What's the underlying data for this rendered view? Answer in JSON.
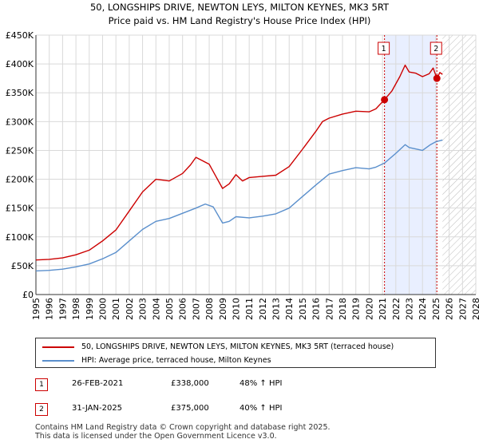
{
  "chart_data": {
    "type": "line",
    "title_line1": "50, LONGSHIPS DRIVE, NEWTON LEYS, MILTON KEYNES, MK3 5RT",
    "title_line2": "Price paid vs. HM Land Registry's House Price Index (HPI)",
    "xlim": [
      1995,
      2028
    ],
    "ylim": [
      0,
      450000
    ],
    "y_ticks": [
      {
        "v": 0,
        "label": "£0"
      },
      {
        "v": 50000,
        "label": "£50K"
      },
      {
        "v": 100000,
        "label": "£100K"
      },
      {
        "v": 150000,
        "label": "£150K"
      },
      {
        "v": 200000,
        "label": "£200K"
      },
      {
        "v": 250000,
        "label": "£250K"
      },
      {
        "v": 300000,
        "label": "£300K"
      },
      {
        "v": 350000,
        "label": "£350K"
      },
      {
        "v": 400000,
        "label": "£400K"
      },
      {
        "v": 450000,
        "label": "£450K"
      }
    ],
    "x_ticks": [
      "1995",
      "1996",
      "1997",
      "1998",
      "1999",
      "2000",
      "2001",
      "2002",
      "2003",
      "2004",
      "2005",
      "2006",
      "2007",
      "2008",
      "2009",
      "2010",
      "2011",
      "2012",
      "2013",
      "2014",
      "2015",
      "2016",
      "2017",
      "2018",
      "2019",
      "2020",
      "2021",
      "2022",
      "2023",
      "2024",
      "2025",
      "2026",
      "2027",
      "2028"
    ],
    "highlight_span": [
      2021.15,
      2025.08
    ],
    "future_hatch_start": 2025.5,
    "series": [
      {
        "name": "50, LONGSHIPS DRIVE, NEWTON LEYS, MILTON KEYNES, MK3 5RT (terraced house)",
        "color": "#cc0000",
        "points": [
          [
            1995,
            60000
          ],
          [
            1996,
            61000
          ],
          [
            1997,
            63500
          ],
          [
            1998,
            69000
          ],
          [
            1999,
            77000
          ],
          [
            2000,
            93000
          ],
          [
            2001,
            112000
          ],
          [
            2002,
            145000
          ],
          [
            2003,
            178000
          ],
          [
            2004,
            200000
          ],
          [
            2005,
            197000
          ],
          [
            2006,
            210000
          ],
          [
            2006.6,
            225000
          ],
          [
            2007,
            238000
          ],
          [
            2007.5,
            232000
          ],
          [
            2008,
            226000
          ],
          [
            2008.5,
            205000
          ],
          [
            2009,
            184000
          ],
          [
            2009.5,
            192000
          ],
          [
            2010,
            208000
          ],
          [
            2010.5,
            197000
          ],
          [
            2011,
            203000
          ],
          [
            2012,
            205000
          ],
          [
            2013,
            207000
          ],
          [
            2014,
            222000
          ],
          [
            2015,
            252000
          ],
          [
            2016,
            283000
          ],
          [
            2016.5,
            300000
          ],
          [
            2017,
            306000
          ],
          [
            2018,
            313000
          ],
          [
            2019,
            318000
          ],
          [
            2020,
            317000
          ],
          [
            2020.5,
            322000
          ],
          [
            2021.15,
            338000
          ],
          [
            2021.7,
            353000
          ],
          [
            2022.3,
            378000
          ],
          [
            2022.7,
            398000
          ],
          [
            2023,
            386000
          ],
          [
            2023.5,
            384000
          ],
          [
            2024,
            378000
          ],
          [
            2024.5,
            383000
          ],
          [
            2024.8,
            393000
          ],
          [
            2025.08,
            375000
          ],
          [
            2025.3,
            385000
          ],
          [
            2025.5,
            382000
          ]
        ]
      },
      {
        "name": "HPI: Average price, terraced house, Milton Keynes",
        "color": "#5a8fcc",
        "points": [
          [
            1995,
            41000
          ],
          [
            1996,
            42000
          ],
          [
            1997,
            44000
          ],
          [
            1998,
            48000
          ],
          [
            1999,
            53000
          ],
          [
            2000,
            62000
          ],
          [
            2001,
            73000
          ],
          [
            2002,
            93000
          ],
          [
            2003,
            113000
          ],
          [
            2004,
            127000
          ],
          [
            2005,
            132000
          ],
          [
            2006,
            141000
          ],
          [
            2007,
            150000
          ],
          [
            2007.7,
            157000
          ],
          [
            2008.3,
            152000
          ],
          [
            2009,
            124000
          ],
          [
            2009.5,
            127000
          ],
          [
            2010,
            135000
          ],
          [
            2011,
            133000
          ],
          [
            2012,
            136000
          ],
          [
            2013,
            140000
          ],
          [
            2014,
            150000
          ],
          [
            2015,
            170000
          ],
          [
            2016,
            190000
          ],
          [
            2017,
            209000
          ],
          [
            2018,
            215000
          ],
          [
            2019,
            220000
          ],
          [
            2020,
            218000
          ],
          [
            2020.5,
            221000
          ],
          [
            2021.15,
            228000
          ],
          [
            2022,
            245000
          ],
          [
            2022.7,
            260000
          ],
          [
            2023,
            255000
          ],
          [
            2024,
            250000
          ],
          [
            2024.6,
            260000
          ],
          [
            2025,
            265000
          ],
          [
            2025.5,
            268000
          ]
        ]
      }
    ],
    "sales": [
      {
        "label": "1",
        "x": 2021.15,
        "y": 338000,
        "date": "26-FEB-2021",
        "price": "£338,000",
        "hpi": "48% ↑ HPI"
      },
      {
        "label": "2",
        "x": 2025.08,
        "y": 375000,
        "date": "31-JAN-2025",
        "price": "£375,000",
        "hpi": "40% ↑ HPI"
      }
    ],
    "colors": {
      "grid": "#d9d9d9",
      "highlight": "#e9efff",
      "marker_line": "#cc0000",
      "axis": "#333333"
    }
  },
  "legend": {
    "property": "50, LONGSHIPS DRIVE, NEWTON LEYS, MILTON KEYNES, MK3 5RT (terraced house)",
    "hpi": "HPI: Average price, terraced house, Milton Keynes"
  },
  "footer": {
    "line1": "Contains HM Land Registry data © Crown copyright and database right 2025.",
    "line2": "This data is licensed under the Open Government Licence v3.0."
  }
}
